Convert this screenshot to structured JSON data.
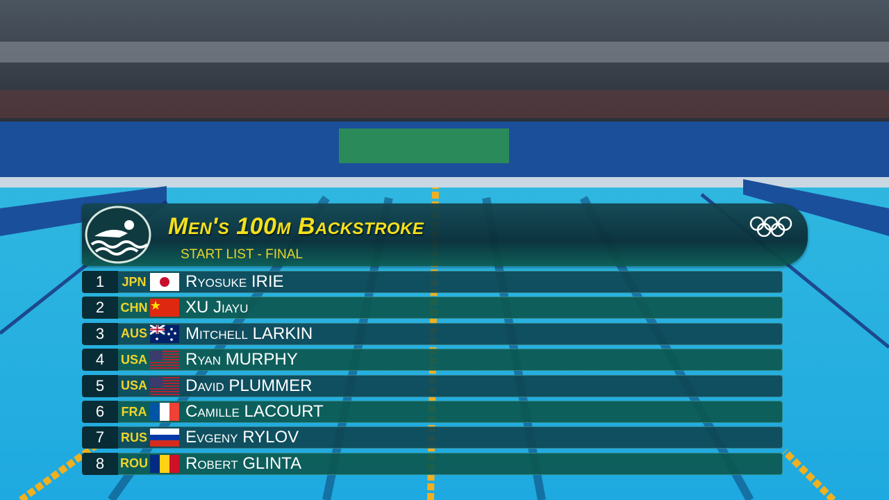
{
  "header": {
    "title": "Men's 100m Backstroke",
    "subtitle": "START LIST - FINAL"
  },
  "rows": [
    {
      "lane": 1,
      "country": "JPN",
      "name": "Ryosuke IRIE"
    },
    {
      "lane": 2,
      "country": "CHN",
      "name": "XU Jiayu"
    },
    {
      "lane": 3,
      "country": "AUS",
      "name": "Mitchell LARKIN"
    },
    {
      "lane": 4,
      "country": "USA",
      "name": "Ryan MURPHY"
    },
    {
      "lane": 5,
      "country": "USA",
      "name": "David PLUMMER"
    },
    {
      "lane": 6,
      "country": "FRA",
      "name": "Camille LACOURT"
    },
    {
      "lane": 7,
      "country": "RUS",
      "name": "Evgeny RYLOV"
    },
    {
      "lane": 8,
      "country": "ROU",
      "name": "Robert GLINTA"
    }
  ]
}
